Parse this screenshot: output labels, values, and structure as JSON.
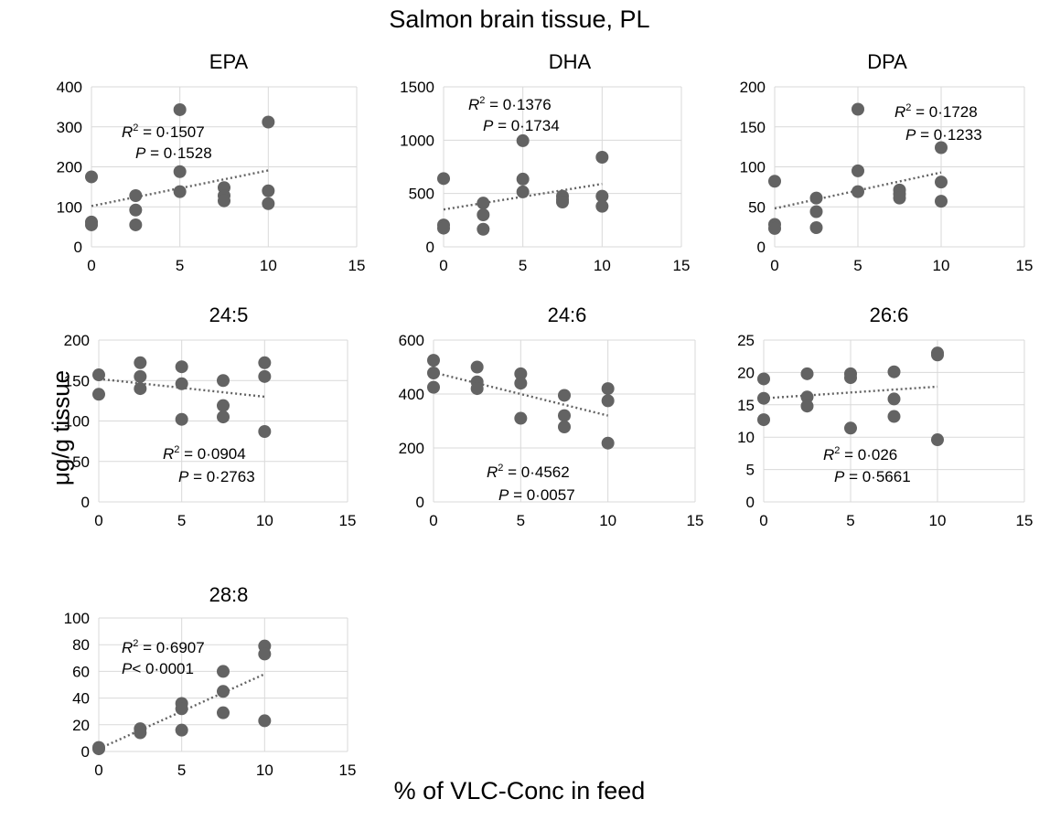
{
  "title": "Salmon brain tissue, PL",
  "ylabel": "μg/g tissue",
  "xlabel": "% of VLC-Conc in feed",
  "chart_data": [
    {
      "type": "scatter",
      "title": "EPA",
      "xlim": [
        0,
        15
      ],
      "ylim": [
        0,
        400
      ],
      "xticks": [
        0,
        5,
        10,
        15
      ],
      "yticks": [
        0,
        100,
        200,
        300,
        400
      ],
      "x": [
        0,
        0,
        0,
        2.5,
        2.5,
        2.5,
        5,
        5,
        5,
        7.5,
        7.5,
        7.5,
        10,
        10,
        10
      ],
      "y": [
        175,
        62,
        55,
        128,
        92,
        55,
        343,
        188,
        138,
        148,
        128,
        115,
        312,
        140,
        108
      ],
      "trend": [
        [
          0,
          102
        ],
        [
          10,
          191
        ]
      ],
      "r2_label": "R",
      "r2_text": " = 0·1507",
      "p_label": "P",
      "p_text": " = 0·1528"
    },
    {
      "type": "scatter",
      "title": "DHA",
      "xlim": [
        0,
        15
      ],
      "ylim": [
        0,
        1500
      ],
      "xticks": [
        0,
        5,
        10,
        15
      ],
      "yticks": [
        0,
        500,
        1000,
        1500
      ],
      "x": [
        0,
        0,
        0,
        2.5,
        2.5,
        2.5,
        5,
        5,
        5,
        7.5,
        7.5,
        7.5,
        10,
        10,
        10
      ],
      "y": [
        640,
        205,
        175,
        410,
        300,
        165,
        995,
        635,
        515,
        475,
        445,
        420,
        840,
        475,
        380
      ],
      "trend": [
        [
          0,
          350
        ],
        [
          10,
          590
        ]
      ],
      "r2_label": "R",
      "r2_text": " = 0·1376",
      "p_label": "P",
      "p_text": " = 0·1734"
    },
    {
      "type": "scatter",
      "title": "DPA",
      "xlim": [
        0,
        15
      ],
      "ylim": [
        0,
        200
      ],
      "xticks": [
        0,
        5,
        10,
        15
      ],
      "yticks": [
        0,
        50,
        100,
        150,
        200
      ],
      "x": [
        0,
        0,
        0,
        2.5,
        2.5,
        2.5,
        5,
        5,
        5,
        7.5,
        7.5,
        7.5,
        10,
        10,
        10
      ],
      "y": [
        82,
        28,
        23,
        61,
        44,
        24,
        172,
        95,
        69,
        71,
        66,
        61,
        124,
        81,
        57
      ],
      "trend": [
        [
          0,
          48
        ],
        [
          10,
          93
        ]
      ],
      "r2_label": "R",
      "r2_text": " = 0·1728",
      "p_label": "P",
      "p_text": " = 0·1233"
    },
    {
      "type": "scatter",
      "title": "24:5",
      "xlim": [
        0,
        15
      ],
      "ylim": [
        0,
        200
      ],
      "xticks": [
        0,
        5,
        10,
        15
      ],
      "yticks": [
        0,
        50,
        100,
        150,
        200
      ],
      "x": [
        0,
        0,
        2.5,
        2.5,
        2.5,
        5,
        5,
        5,
        7.5,
        7.5,
        7.5,
        10,
        10,
        10
      ],
      "y": [
        157,
        133,
        172,
        155,
        140,
        167,
        146,
        102,
        150,
        119,
        105,
        172,
        155,
        87
      ],
      "trend": [
        [
          0,
          152
        ],
        [
          10,
          130
        ]
      ],
      "r2_label": "R",
      "r2_text": " = 0·0904",
      "p_label": "P",
      "p_text": " = 0·2763"
    },
    {
      "type": "scatter",
      "title": "24:6",
      "xlim": [
        0,
        15
      ],
      "ylim": [
        0,
        600
      ],
      "xticks": [
        0,
        5,
        10,
        15
      ],
      "yticks": [
        0,
        200,
        400,
        600
      ],
      "x": [
        0,
        0,
        0,
        2.5,
        2.5,
        2.5,
        5,
        5,
        5,
        7.5,
        7.5,
        7.5,
        10,
        10,
        10
      ],
      "y": [
        525,
        478,
        425,
        500,
        445,
        420,
        475,
        440,
        310,
        395,
        320,
        278,
        420,
        375,
        218
      ],
      "trend": [
        [
          0,
          480
        ],
        [
          10,
          320
        ]
      ],
      "r2_label": "R",
      "r2_text": " = 0·4562",
      "p_label": "P",
      "p_text": " = 0·0057"
    },
    {
      "type": "scatter",
      "title": "26:6",
      "xlim": [
        0,
        15
      ],
      "ylim": [
        0,
        25
      ],
      "xticks": [
        0,
        5,
        10,
        15
      ],
      "yticks": [
        0,
        5,
        10,
        15,
        20,
        25
      ],
      "x": [
        0,
        0,
        0,
        2.5,
        2.5,
        2.5,
        5,
        5,
        5,
        7.5,
        7.5,
        7.5,
        10,
        10,
        10
      ],
      "y": [
        19,
        16,
        12.7,
        19.8,
        16.2,
        14.8,
        19.8,
        19.2,
        11.4,
        20.1,
        15.9,
        13.2,
        23,
        22.7,
        9.6
      ],
      "trend": [
        [
          0,
          16
        ],
        [
          10,
          17.8
        ]
      ],
      "r2_label": "R",
      "r2_text": " = 0·026",
      "p_label": "P",
      "p_text": " = 0·5661"
    },
    {
      "type": "scatter",
      "title": "28:8",
      "xlim": [
        0,
        15
      ],
      "ylim": [
        0,
        100
      ],
      "xticks": [
        0,
        5,
        10,
        15
      ],
      "yticks": [
        0,
        20,
        40,
        60,
        80,
        100
      ],
      "x": [
        0,
        0,
        2.5,
        2.5,
        5,
        5,
        5,
        7.5,
        7.5,
        7.5,
        10,
        10,
        10
      ],
      "y": [
        3,
        2,
        17,
        14,
        36,
        32,
        16,
        60,
        45,
        29,
        79,
        73,
        23
      ],
      "trend": [
        [
          0,
          2
        ],
        [
          10,
          58
        ]
      ],
      "r2_label": "R",
      "r2_text": " = 0·6907",
      "p_label": "P",
      "p_text": "< 0·0001"
    }
  ]
}
